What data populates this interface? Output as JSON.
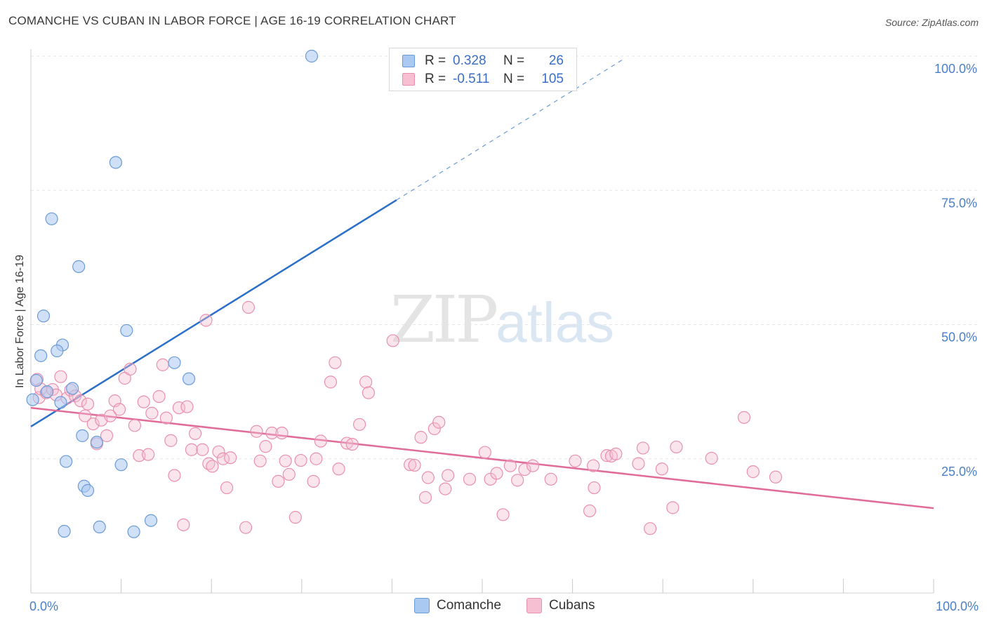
{
  "title": "COMANCHE VS CUBAN IN LABOR FORCE | AGE 16-19 CORRELATION CHART",
  "source": "Source: ZipAtlas.com",
  "watermark": {
    "zip": "ZIP",
    "atlas": "atlas"
  },
  "legend": {
    "r_label": "R =",
    "n_label": "N =",
    "rows": [
      {
        "series": "Comanche",
        "r": "0.328",
        "n": "26"
      },
      {
        "series": "Cubans",
        "r": "-0.511",
        "n": "105"
      }
    ]
  },
  "colors": {
    "comanche_fill": "#aac9f0",
    "comanche_stroke": "#6a9bd8",
    "comanche_line": "#2b6fc8",
    "cubans_fill": "#f6bfd2",
    "cubans_stroke": "#e890ae",
    "cubans_line": "#e06c98",
    "grid": "#e6e6e6",
    "axis_text": "#4a7fc8"
  },
  "chart_data": {
    "type": "scatter",
    "title": "COMANCHE VS CUBAN IN LABOR FORCE | AGE 16-19 CORRELATION CHART",
    "xlabel": "",
    "ylabel": "In Labor Force | Age 16-19",
    "xlim": [
      0,
      100
    ],
    "ylim": [
      0,
      102
    ],
    "x_tick_labels": [
      "0.0%",
      "100.0%"
    ],
    "y_ticks": [
      25,
      50,
      75,
      100
    ],
    "y_tick_labels": [
      "25.0%",
      "50.0%",
      "75.0%",
      "100.0%"
    ],
    "grid": true,
    "legend_position": "top-center",
    "series": [
      {
        "name": "Comanche",
        "points": [
          [
            31.1,
            100.0
          ],
          [
            9.4,
            80.2
          ],
          [
            2.3,
            69.7
          ],
          [
            5.3,
            60.8
          ],
          [
            1.4,
            51.6
          ],
          [
            10.6,
            48.9
          ],
          [
            3.5,
            46.2
          ],
          [
            1.1,
            44.2
          ],
          [
            2.9,
            45.1
          ],
          [
            0.6,
            39.6
          ],
          [
            0.2,
            36.0
          ],
          [
            1.8,
            37.5
          ],
          [
            3.3,
            35.5
          ],
          [
            4.6,
            38.1
          ],
          [
            15.9,
            42.9
          ],
          [
            17.5,
            39.9
          ],
          [
            5.7,
            29.3
          ],
          [
            7.3,
            28.1
          ],
          [
            3.9,
            24.5
          ],
          [
            10.0,
            23.9
          ],
          [
            5.9,
            19.9
          ],
          [
            6.3,
            19.1
          ],
          [
            3.7,
            11.5
          ],
          [
            7.6,
            12.3
          ],
          [
            11.4,
            11.4
          ],
          [
            13.3,
            13.5
          ]
        ],
        "trend": {
          "x0": 0.0,
          "y0": 31.0,
          "x1": 40.5,
          "y1": 73.2,
          "dash_x1": 65.7,
          "dash_y1": 99.5
        }
      },
      {
        "name": "Cubans",
        "points": [
          [
            0.7,
            39.8
          ],
          [
            0.9,
            36.4
          ],
          [
            1.1,
            38.0
          ],
          [
            1.7,
            37.3
          ],
          [
            2.4,
            37.9
          ],
          [
            2.8,
            36.9
          ],
          [
            3.3,
            40.3
          ],
          [
            4.0,
            36.3
          ],
          [
            4.4,
            37.8
          ],
          [
            4.9,
            36.7
          ],
          [
            5.5,
            35.8
          ],
          [
            6.0,
            33.0
          ],
          [
            6.3,
            35.2
          ],
          [
            6.9,
            31.5
          ],
          [
            7.3,
            27.8
          ],
          [
            7.8,
            32.2
          ],
          [
            8.4,
            29.3
          ],
          [
            8.8,
            33.0
          ],
          [
            9.3,
            35.8
          ],
          [
            9.8,
            34.2
          ],
          [
            10.4,
            40.0
          ],
          [
            11.0,
            41.7
          ],
          [
            11.5,
            31.2
          ],
          [
            12.0,
            25.6
          ],
          [
            12.5,
            35.6
          ],
          [
            13.0,
            25.8
          ],
          [
            13.4,
            33.5
          ],
          [
            14.2,
            36.6
          ],
          [
            14.6,
            42.5
          ],
          [
            15.0,
            32.6
          ],
          [
            15.5,
            28.4
          ],
          [
            15.9,
            21.9
          ],
          [
            16.4,
            34.5
          ],
          [
            16.9,
            12.7
          ],
          [
            17.3,
            34.7
          ],
          [
            17.8,
            26.7
          ],
          [
            18.2,
            29.7
          ],
          [
            19.0,
            26.7
          ],
          [
            19.4,
            50.8
          ],
          [
            19.7,
            24.1
          ],
          [
            20.1,
            23.6
          ],
          [
            20.8,
            26.3
          ],
          [
            21.3,
            25.0
          ],
          [
            21.7,
            19.6
          ],
          [
            22.1,
            25.2
          ],
          [
            23.8,
            12.2
          ],
          [
            24.1,
            53.2
          ],
          [
            25.0,
            30.1
          ],
          [
            25.4,
            24.6
          ],
          [
            26.0,
            27.3
          ],
          [
            26.7,
            29.8
          ],
          [
            27.4,
            20.8
          ],
          [
            27.8,
            29.8
          ],
          [
            28.2,
            24.6
          ],
          [
            28.6,
            22.1
          ],
          [
            29.3,
            14.1
          ],
          [
            29.9,
            24.7
          ],
          [
            31.3,
            20.8
          ],
          [
            31.6,
            25.0
          ],
          [
            32.1,
            28.3
          ],
          [
            33.2,
            39.3
          ],
          [
            33.7,
            42.9
          ],
          [
            34.1,
            23.1
          ],
          [
            35.0,
            27.9
          ],
          [
            35.6,
            27.7
          ],
          [
            36.4,
            31.4
          ],
          [
            37.1,
            39.3
          ],
          [
            37.4,
            37.3
          ],
          [
            40.1,
            47.0
          ],
          [
            42.0,
            23.9
          ],
          [
            42.5,
            23.8
          ],
          [
            43.2,
            29.0
          ],
          [
            43.7,
            17.8
          ],
          [
            44.0,
            21.5
          ],
          [
            44.7,
            30.6
          ],
          [
            45.2,
            31.8
          ],
          [
            45.9,
            19.4
          ],
          [
            46.2,
            21.9
          ],
          [
            48.6,
            21.2
          ],
          [
            50.3,
            26.2
          ],
          [
            50.9,
            21.2
          ],
          [
            51.6,
            22.3
          ],
          [
            52.3,
            14.6
          ],
          [
            53.1,
            23.7
          ],
          [
            53.9,
            21.0
          ],
          [
            54.7,
            23.0
          ],
          [
            55.6,
            23.7
          ],
          [
            57.6,
            21.2
          ],
          [
            60.3,
            24.6
          ],
          [
            61.9,
            15.3
          ],
          [
            62.3,
            23.7
          ],
          [
            62.4,
            19.6
          ],
          [
            63.8,
            25.6
          ],
          [
            64.3,
            25.5
          ],
          [
            64.8,
            25.9
          ],
          [
            67.3,
            24.1
          ],
          [
            67.8,
            27.0
          ],
          [
            68.6,
            12.0
          ],
          [
            69.9,
            23.1
          ],
          [
            71.1,
            15.9
          ],
          [
            71.5,
            27.2
          ],
          [
            75.4,
            25.1
          ],
          [
            79.0,
            32.7
          ],
          [
            80.0,
            22.6
          ],
          [
            82.5,
            21.6
          ]
        ],
        "trend": {
          "x0": 0.0,
          "y0": 34.5,
          "x1": 100.0,
          "y1": 15.8
        }
      }
    ]
  }
}
